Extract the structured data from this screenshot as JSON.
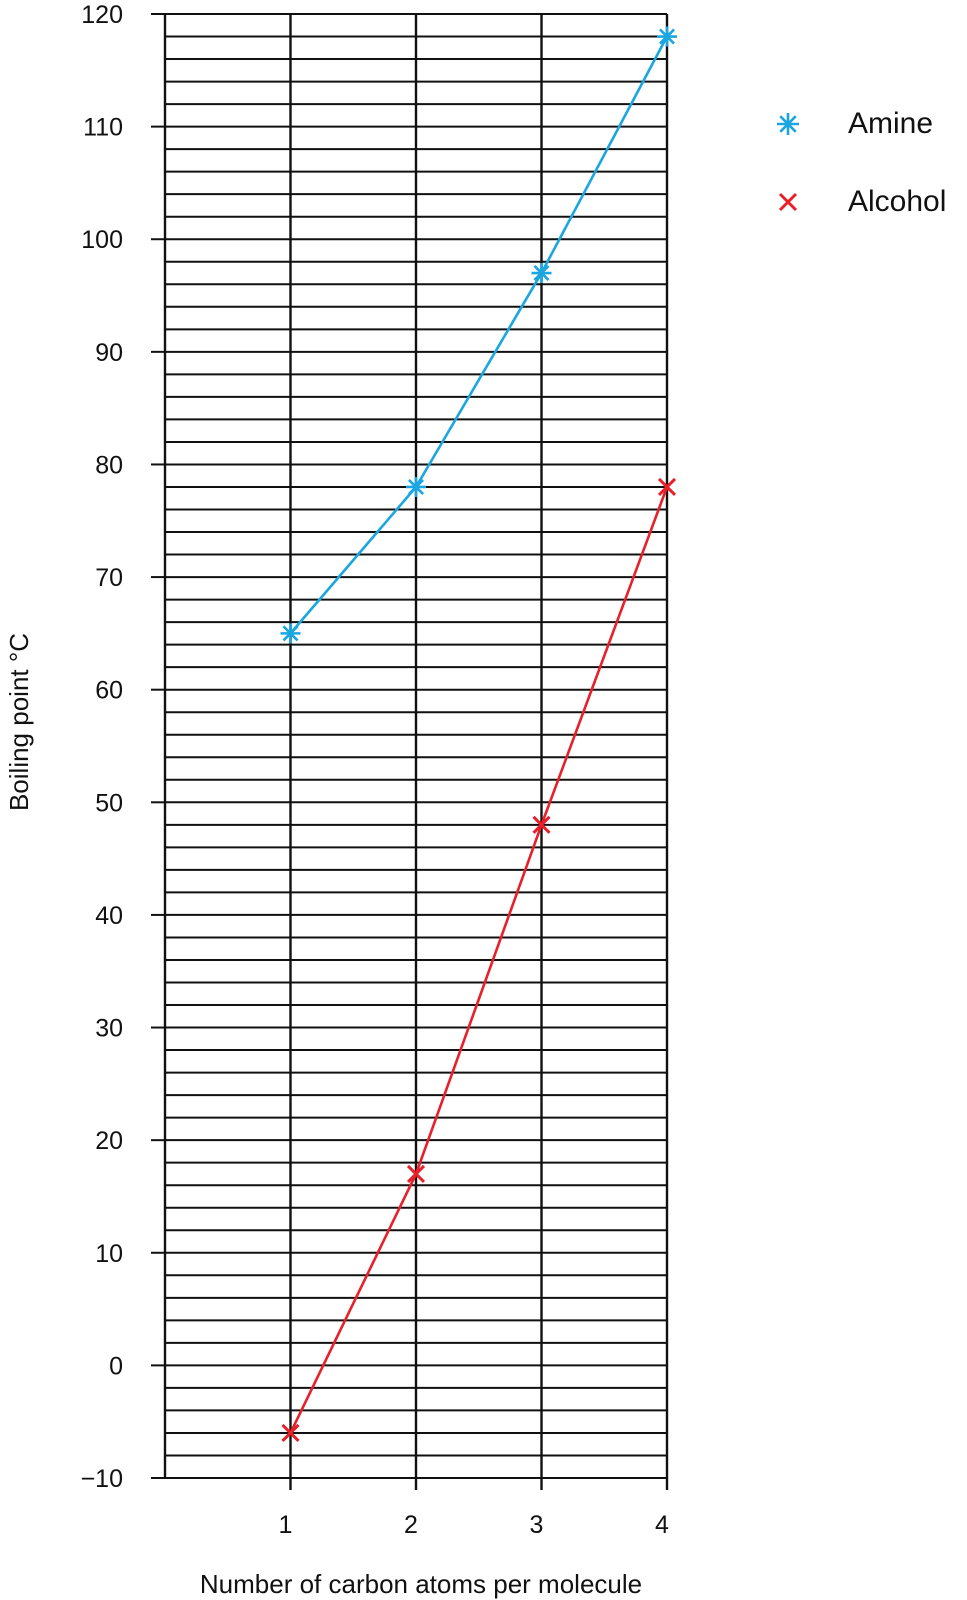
{
  "chart_data": {
    "type": "line",
    "xlabel": "Number of carbon atoms per molecule",
    "ylabel": "Boiling point °C",
    "x": [
      1,
      2,
      3,
      4
    ],
    "xticks": [
      1,
      2,
      3,
      4
    ],
    "xlim": [
      0,
      4
    ],
    "ylim": [
      -10,
      120
    ],
    "yticks": [
      -10,
      0,
      10,
      20,
      30,
      40,
      50,
      60,
      70,
      80,
      90,
      100,
      110,
      120
    ],
    "ytick_labels": [
      "−10",
      "0",
      "10",
      "20",
      "30",
      "40",
      "50",
      "60",
      "70",
      "80",
      "90",
      "100",
      "110",
      "120"
    ],
    "minor_grid_step": 2,
    "grid": true,
    "legend_position": "top-right, outside plot",
    "series": [
      {
        "name": "Amine",
        "values": [
          65,
          78,
          97,
          118
        ],
        "color": "#1aa6e0",
        "marker": "asterisk"
      },
      {
        "name": "Alcohol",
        "values": [
          -6,
          17,
          48,
          78
        ],
        "color": "#e8202a",
        "marker": "cross"
      }
    ]
  }
}
